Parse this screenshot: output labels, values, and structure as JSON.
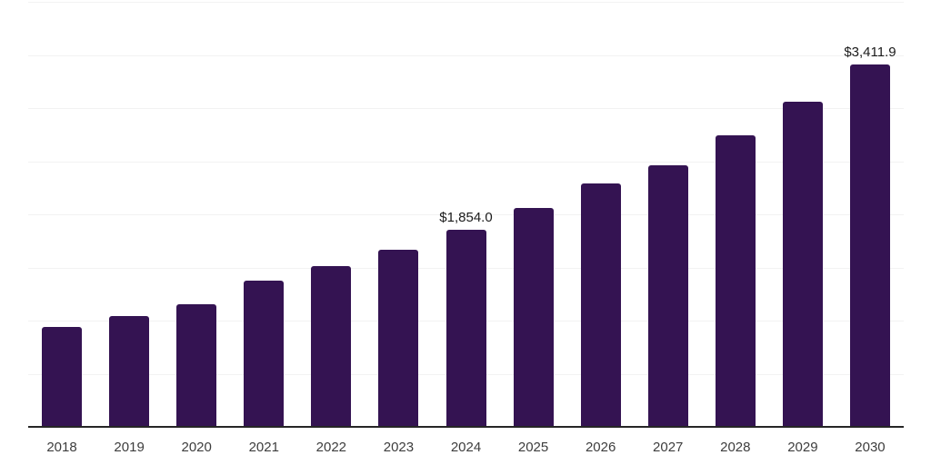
{
  "chart_data": {
    "type": "bar",
    "title": "",
    "xlabel": "",
    "ylabel": "",
    "categories": [
      "2018",
      "2019",
      "2020",
      "2021",
      "2022",
      "2023",
      "2024",
      "2025",
      "2026",
      "2027",
      "2028",
      "2029",
      "2030"
    ],
    "values": [
      940,
      1045,
      1155,
      1373,
      1515,
      1671,
      1854.0,
      2060,
      2287,
      2459,
      2742,
      3060,
      3411.9
    ],
    "annotations": [
      {
        "category": "2024",
        "text": "$1,854.0"
      },
      {
        "category": "2030",
        "text": "$3,411.9"
      }
    ],
    "ylim": [
      0,
      4000
    ],
    "grid_step": 500,
    "grid": "horizontal",
    "legend": "none",
    "y_tick_labels_visible": false,
    "colors": {
      "bar": "#341352",
      "axis_line": "#262626",
      "gridline": "#f2f2f2",
      "tick_label": "#3d3d3d",
      "data_label": "#1a1a1a",
      "background": "#ffffff"
    }
  }
}
